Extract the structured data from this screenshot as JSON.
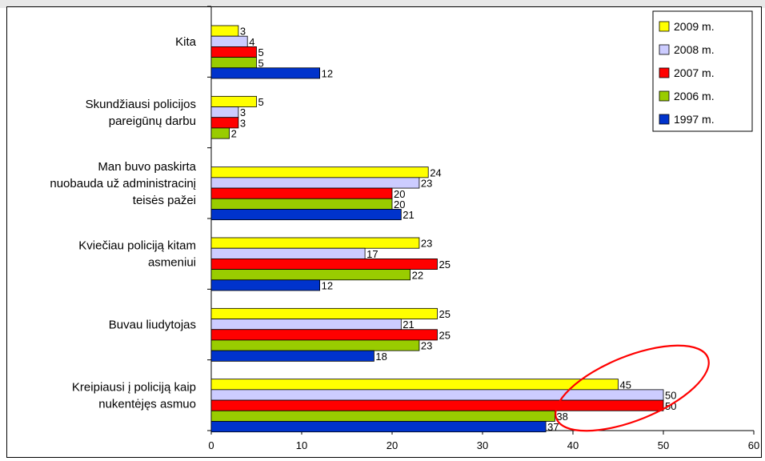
{
  "chart_data": {
    "type": "bar",
    "orientation": "horizontal",
    "categories": [
      [
        "Kita"
      ],
      [
        "Skundžiausi policijos",
        "pareigūnų darbu"
      ],
      [
        "Man buvo paskirta",
        "nuobauda už administracinį",
        "teisės pažei"
      ],
      [
        "Kviečiau policiją kitam",
        "asmeniui"
      ],
      [
        "Buvau liudytojas"
      ],
      [
        "Kreipiausi į policiją kaip",
        "nukentėjęs asmuo"
      ]
    ],
    "series": [
      {
        "name": "2009 m.",
        "color": "#ffff00",
        "values": [
          3,
          5,
          24,
          23,
          25,
          45
        ]
      },
      {
        "name": "2008 m.",
        "color": "#ccccff",
        "values": [
          4,
          3,
          23,
          17,
          21,
          50
        ]
      },
      {
        "name": "2007 m.",
        "color": "#ff0000",
        "values": [
          5,
          3,
          20,
          25,
          25,
          50
        ]
      },
      {
        "name": "2006 m.",
        "color": "#99cc00",
        "values": [
          5,
          2,
          20,
          22,
          23,
          38
        ]
      },
      {
        "name": "1997 m.",
        "color": "#0033cc",
        "values": [
          12,
          null,
          21,
          12,
          18,
          37
        ]
      }
    ],
    "xlim": [
      0,
      60
    ],
    "xticks": [
      0,
      10,
      20,
      30,
      40,
      50,
      60
    ],
    "legend_position": "top-right",
    "annotation": {
      "shape": "ellipse",
      "color": "#ff0000",
      "highlights": "Kreipiausi į policiją kaip nukentėjęs asmuo"
    }
  }
}
